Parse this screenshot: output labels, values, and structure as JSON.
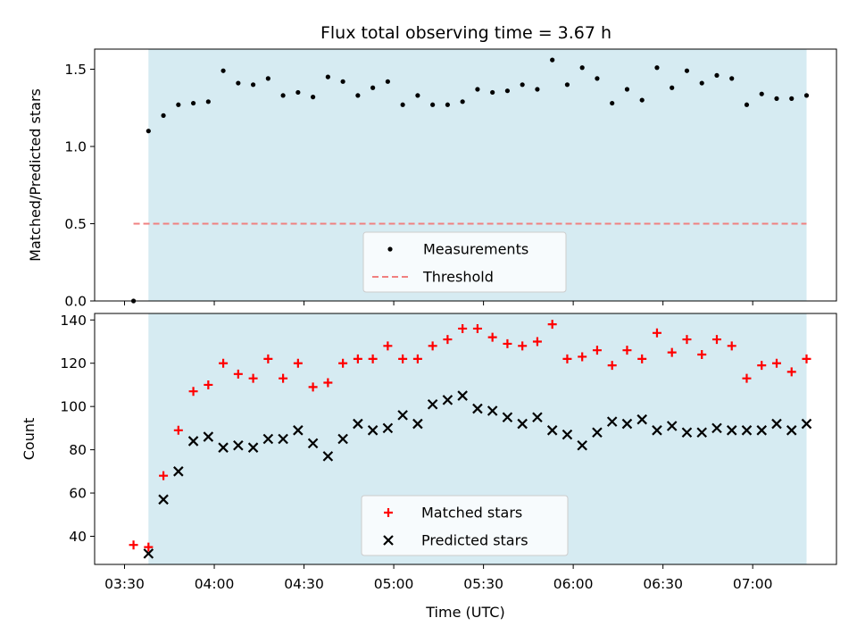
{
  "title": "Flux total observing time = 3.67 h",
  "colors": {
    "shade": "#add8e6",
    "threshold": "#f08080",
    "measurements": "#000000",
    "matched": "#ff0000",
    "predicted": "#000000"
  },
  "chart_data": [
    {
      "type": "scatter",
      "ylabel": "Matched/Predicted stars",
      "xlabel": "",
      "xlim": [
        "03:20",
        "07:28"
      ],
      "ylim": [
        0,
        1.63
      ],
      "yticks": [
        0.0,
        0.5,
        1.0,
        1.5
      ],
      "ytick_labels": [
        "0.0",
        "0.5",
        "1.0",
        "1.5"
      ],
      "xticks": [
        "03:30",
        "04:00",
        "04:30",
        "05:00",
        "05:30",
        "06:00",
        "06:30",
        "07:00"
      ],
      "shaded_region": [
        "03:38",
        "07:18"
      ],
      "threshold": {
        "name": "Threshold",
        "value": 0.5,
        "x": [
          "03:33",
          "07:18"
        ]
      },
      "legend": [
        "Measurements",
        "Threshold"
      ],
      "legend_position": "lower-center",
      "series": [
        {
          "name": "Measurements",
          "marker": "dot",
          "x": [
            "03:33",
            "03:38",
            "03:43",
            "03:48",
            "03:53",
            "03:58",
            "04:03",
            "04:08",
            "04:13",
            "04:18",
            "04:23",
            "04:28",
            "04:33",
            "04:38",
            "04:43",
            "04:48",
            "04:53",
            "04:58",
            "05:03",
            "05:08",
            "05:13",
            "05:18",
            "05:23",
            "05:28",
            "05:33",
            "05:38",
            "05:43",
            "05:48",
            "05:53",
            "05:58",
            "06:03",
            "06:08",
            "06:13",
            "06:18",
            "06:23",
            "06:28",
            "06:33",
            "06:38",
            "06:43",
            "06:48",
            "06:53",
            "06:58",
            "07:03",
            "07:08",
            "07:13",
            "07:18"
          ],
          "values": [
            0.0,
            1.1,
            1.2,
            1.27,
            1.28,
            1.29,
            1.49,
            1.41,
            1.4,
            1.44,
            1.33,
            1.35,
            1.32,
            1.45,
            1.42,
            1.33,
            1.38,
            1.42,
            1.27,
            1.33,
            1.27,
            1.27,
            1.29,
            1.37,
            1.35,
            1.36,
            1.4,
            1.37,
            1.56,
            1.4,
            1.51,
            1.44,
            1.28,
            1.37,
            1.3,
            1.51,
            1.38,
            1.49,
            1.41,
            1.46,
            1.44,
            1.27,
            1.34,
            1.31,
            1.31,
            1.33
          ]
        }
      ]
    },
    {
      "type": "scatter",
      "ylabel": "Count",
      "xlabel": "Time (UTC)",
      "xlim": [
        "03:20",
        "07:28"
      ],
      "ylim": [
        27,
        143
      ],
      "yticks": [
        40,
        60,
        80,
        100,
        120,
        140
      ],
      "ytick_labels": [
        "40",
        "60",
        "80",
        "100",
        "120",
        "140"
      ],
      "xticks": [
        "03:30",
        "04:00",
        "04:30",
        "05:00",
        "05:30",
        "06:00",
        "06:30",
        "07:00"
      ],
      "shaded_region": [
        "03:38",
        "07:18"
      ],
      "legend": [
        "Matched stars",
        "Predicted stars"
      ],
      "legend_position": "lower-center",
      "series": [
        {
          "name": "Matched stars",
          "marker": "plus",
          "x": [
            "03:33",
            "03:38",
            "03:43",
            "03:48",
            "03:53",
            "03:58",
            "04:03",
            "04:08",
            "04:13",
            "04:18",
            "04:23",
            "04:28",
            "04:33",
            "04:38",
            "04:43",
            "04:48",
            "04:53",
            "04:58",
            "05:03",
            "05:08",
            "05:13",
            "05:18",
            "05:23",
            "05:28",
            "05:33",
            "05:38",
            "05:43",
            "05:48",
            "05:53",
            "05:58",
            "06:03",
            "06:08",
            "06:13",
            "06:18",
            "06:23",
            "06:28",
            "06:33",
            "06:38",
            "06:43",
            "06:48",
            "06:53",
            "06:58",
            "07:03",
            "07:08",
            "07:13",
            "07:18"
          ],
          "values": [
            36,
            35,
            68,
            89,
            107,
            110,
            120,
            115,
            113,
            122,
            113,
            120,
            109,
            111,
            120,
            122,
            122,
            128,
            122,
            122,
            128,
            131,
            136,
            136,
            132,
            129,
            128,
            130,
            138,
            122,
            123,
            126,
            119,
            126,
            122,
            134,
            125,
            131,
            124,
            131,
            128,
            113,
            119,
            120,
            116,
            122
          ]
        },
        {
          "name": "Predicted stars",
          "marker": "x",
          "x": [
            "03:38",
            "03:43",
            "03:48",
            "03:53",
            "03:58",
            "04:03",
            "04:08",
            "04:13",
            "04:18",
            "04:23",
            "04:28",
            "04:33",
            "04:38",
            "04:43",
            "04:48",
            "04:53",
            "04:58",
            "05:03",
            "05:08",
            "05:13",
            "05:18",
            "05:23",
            "05:28",
            "05:33",
            "05:38",
            "05:43",
            "05:48",
            "05:53",
            "05:58",
            "06:03",
            "06:08",
            "06:13",
            "06:18",
            "06:23",
            "06:28",
            "06:33",
            "06:38",
            "06:43",
            "06:48",
            "06:53",
            "06:58",
            "07:03",
            "07:08",
            "07:13",
            "07:18"
          ],
          "values": [
            32,
            57,
            70,
            84,
            86,
            81,
            82,
            81,
            85,
            85,
            89,
            83,
            77,
            85,
            92,
            89,
            90,
            96,
            92,
            101,
            103,
            105,
            99,
            98,
            95,
            92,
            95,
            89,
            87,
            82,
            88,
            93,
            92,
            94,
            89,
            91,
            88,
            88,
            90,
            89,
            89,
            89,
            92,
            89,
            92
          ]
        }
      ]
    }
  ]
}
